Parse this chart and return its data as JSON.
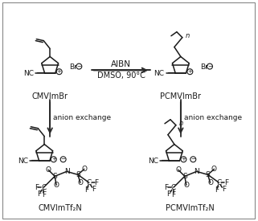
{
  "bg_color": "#ffffff",
  "text_color": "#1a1a1a",
  "arrow_color": "#2a2a2a",
  "reaction_label_top": "AIBN",
  "reaction_label_bottom": "DMSO, 90°C",
  "anion_exchange": "anion exchange",
  "label_CMVImBr": "CMVImBr",
  "label_PCMVImBr": "PCMVImBr",
  "label_CMVImTf2N": "CMVImTf₂N",
  "label_PCMVImTf2N": "PCMVImTf₂N",
  "figsize": [
    3.21,
    2.75
  ],
  "dpi": 100
}
